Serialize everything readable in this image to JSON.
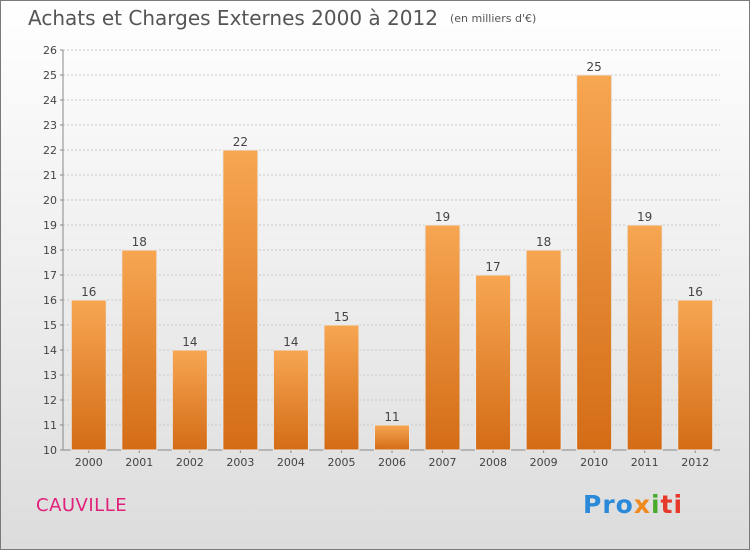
{
  "title": "Achats et Charges Externes 2000 à 2012",
  "unit": "(en milliers d'€)",
  "commune": "CAUVILLE",
  "logo_text": "Proxiti",
  "colors": {
    "bar_light": "#f6a04e",
    "bar_dark": "#d86e18",
    "commune": "#e0207a"
  },
  "chart_data": {
    "type": "bar",
    "title": "Achats et Charges Externes 2000 à 2012",
    "subtitle": "(en milliers d'€)",
    "xlabel": "",
    "ylabel": "",
    "categories": [
      "2000",
      "2001",
      "2002",
      "2003",
      "2004",
      "2005",
      "2006",
      "2007",
      "2008",
      "2009",
      "2010",
      "2011",
      "2012"
    ],
    "values": [
      16,
      18,
      14,
      22,
      14,
      15,
      11,
      19,
      17,
      18,
      25,
      19,
      16
    ],
    "ylim": [
      10,
      26
    ],
    "yticks": [
      10,
      11,
      12,
      13,
      14,
      15,
      16,
      17,
      18,
      19,
      20,
      21,
      22,
      23,
      24,
      25,
      26
    ],
    "grid": true,
    "data_labels": true
  }
}
